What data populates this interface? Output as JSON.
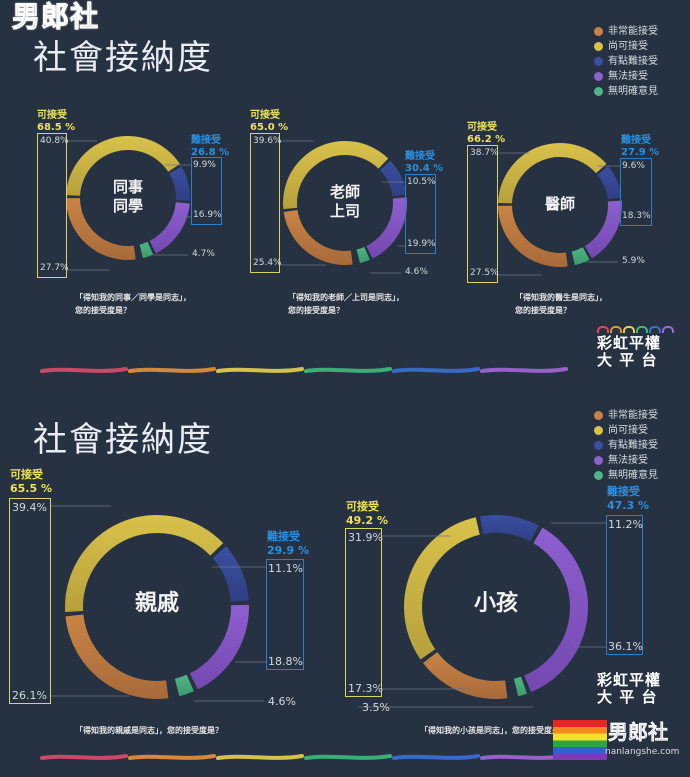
{
  "watermark_top": "男郎社",
  "colors": {
    "very_acceptable": "#c98445",
    "acceptable": "#d9c24a",
    "somewhat_hard": "#3a4fa0",
    "unacceptable": "#8e5fd0",
    "no_opinion": "#4fb584",
    "accept_label": "#efe15a",
    "reject_label": "#2a8fe0",
    "background": "#263241"
  },
  "sections": [
    {
      "title": "社會接納度",
      "legend": [
        "非常能接受",
        "尚可接受",
        "有點難接受",
        "無法接受",
        "無明確意見"
      ]
    },
    {
      "title": "社會接納度",
      "legend": [
        "非常能接受",
        "尚可接受",
        "有點難接受",
        "無法接受",
        "無明確意見"
      ]
    }
  ],
  "chart_data": [
    {
      "type": "pie",
      "donut": true,
      "center_label": "同事\n同學",
      "center_lines": [
        "同事",
        "同學"
      ],
      "categories": [
        "非常能接受",
        "尚可接受",
        "有點難接受",
        "無法接受",
        "無明確意見"
      ],
      "values": [
        27.7,
        40.8,
        9.9,
        16.9,
        4.7
      ],
      "value_labels": [
        "27.7%",
        "40.8%",
        "9.9%",
        "16.9%",
        "4.7%"
      ],
      "accept": {
        "label": "可接受",
        "value": "68.5 %"
      },
      "reject": {
        "label": "難接受",
        "value": "26.8 %"
      },
      "caption": [
        "「得知我的同事／同學是同志」，",
        "您的接受度是？"
      ]
    },
    {
      "type": "pie",
      "donut": true,
      "center_lines": [
        "老師",
        "上司"
      ],
      "categories": [
        "非常能接受",
        "尚可接受",
        "有點難接受",
        "無法接受",
        "無明確意見"
      ],
      "values": [
        25.4,
        39.6,
        10.5,
        19.9,
        4.6
      ],
      "value_labels": [
        "25.4%",
        "39.6%",
        "10.5%",
        "19.9%",
        "4.6%"
      ],
      "accept": {
        "label": "可接受",
        "value": "65.0 %"
      },
      "reject": {
        "label": "難接受",
        "value": "30.4 %"
      },
      "caption": [
        "「得知我的老師／上司是同志」，",
        "您的接受度是？"
      ]
    },
    {
      "type": "pie",
      "donut": true,
      "center_lines": [
        "醫師"
      ],
      "categories": [
        "非常能接受",
        "尚可接受",
        "有點難接受",
        "無法接受",
        "無明確意見"
      ],
      "values": [
        27.5,
        38.7,
        9.6,
        18.3,
        5.9
      ],
      "value_labels": [
        "27.5%",
        "38.7%",
        "9.6%",
        "18.3%",
        "5.9%"
      ],
      "accept": {
        "label": "可接受",
        "value": "66.2 %"
      },
      "reject": {
        "label": "難接受",
        "value": "27.9 %"
      },
      "caption": [
        "「得知我的醫生是同志」，",
        "您的接受度是？"
      ]
    },
    {
      "type": "pie",
      "donut": true,
      "center_lines": [
        "親戚"
      ],
      "categories": [
        "非常能接受",
        "尚可接受",
        "有點難接受",
        "無法接受",
        "無明確意見"
      ],
      "values": [
        26.1,
        39.4,
        11.1,
        18.8,
        4.6
      ],
      "value_labels": [
        "26.1%",
        "39.4%",
        "11.1%",
        "18.8%",
        "4.6%"
      ],
      "accept": {
        "label": "可接受",
        "value": "65.5 %"
      },
      "reject": {
        "label": "難接受",
        "value": "29.9 %"
      },
      "caption": [
        "「得知我的親戚是同志」，您的接受度是？"
      ]
    },
    {
      "type": "pie",
      "donut": true,
      "center_lines": [
        "小孩"
      ],
      "categories": [
        "非常能接受",
        "尚可接受",
        "有點難接受",
        "無法接受",
        "無明確意見"
      ],
      "values": [
        17.3,
        31.9,
        11.2,
        36.1,
        3.5
      ],
      "value_labels": [
        "17.3%",
        "31.9%",
        "11.2%",
        "36.1%",
        "3.5%"
      ],
      "accept": {
        "label": "可接受",
        "value": "49.2 %"
      },
      "reject": {
        "label": "難接受",
        "value": "47.3 %"
      },
      "caption": [
        "「得知我的小孩是同志」，您的接受度是？"
      ]
    }
  ],
  "logo": {
    "line1": "彩虹平權",
    "line2": "大 平 台"
  },
  "watermark_bottom": {
    "text": "男郎社",
    "url": "nanlangshe.com"
  }
}
